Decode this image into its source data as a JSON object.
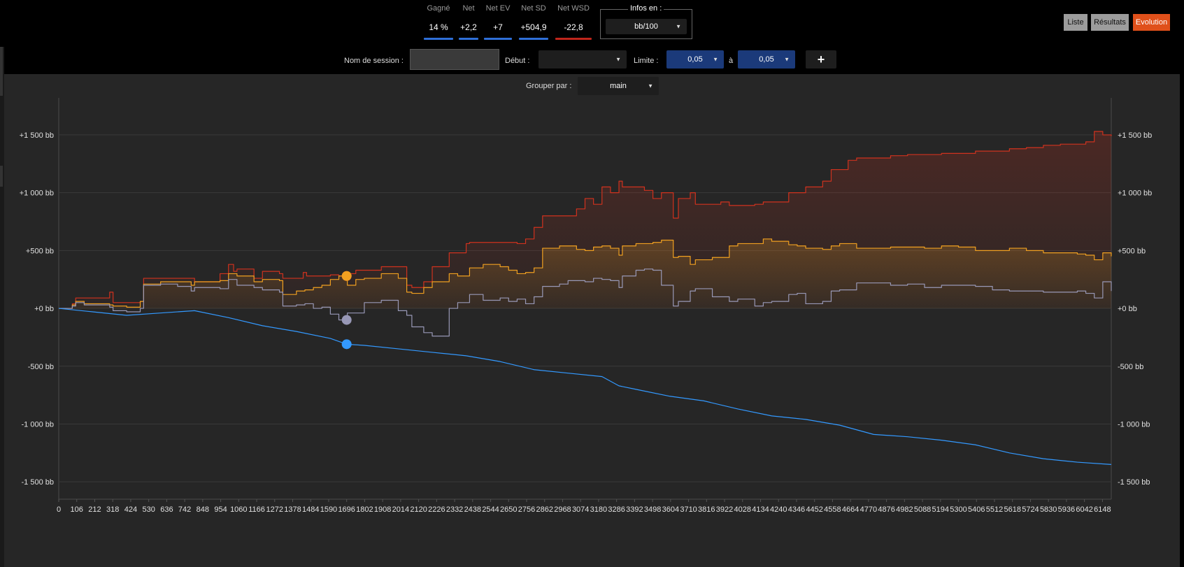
{
  "stats": [
    {
      "label": "Gagné",
      "value": "14 %",
      "color": "#2f6fd8"
    },
    {
      "label": "Net",
      "value": "+2,2",
      "color": "#2f6fd8"
    },
    {
      "label": "Net EV",
      "value": "+7",
      "color": "#2f6fd8"
    },
    {
      "label": "Net SD",
      "value": "+504,9",
      "color": "#2f6fd8"
    },
    {
      "label": "Net WSD",
      "value": "-22,8",
      "color": "#c0261b"
    }
  ],
  "infos": {
    "legend": "Infos en :",
    "value": "bb/100"
  },
  "views": {
    "list": "Liste",
    "results": "Résultats",
    "evolution": "Evolution"
  },
  "toolbar": {
    "session_label": "Nom de session :",
    "session_value": "",
    "start_label": "Début :",
    "start_value": "",
    "limit_label": "Limite :",
    "limit_from": "0,05",
    "to_label": "à",
    "limit_to": "0,05",
    "add_label": "+"
  },
  "group": {
    "label": "Grouper par :",
    "value": "main"
  },
  "chart_data": {
    "type": "line",
    "xlabel": "",
    "ylabel": "",
    "xlim": [
      0,
      6200
    ],
    "ylim": [
      -1650,
      1820
    ],
    "grid": true,
    "x_ticks": [
      "0",
      "106",
      "212",
      "318",
      "424",
      "530",
      "636",
      "742",
      "848",
      "954",
      "1060",
      "1166",
      "1272",
      "1378",
      "1484",
      "1590",
      "1696",
      "1802",
      "1908",
      "2014",
      "2120",
      "2226",
      "2332",
      "2438",
      "2544",
      "2650",
      "2756",
      "2862",
      "2968",
      "3074",
      "3180",
      "3286",
      "3392",
      "3498",
      "3604",
      "3710",
      "3816",
      "3922",
      "4028",
      "4134",
      "4240",
      "4346",
      "4452",
      "4558",
      "4664",
      "4770",
      "4876",
      "4982",
      "5088",
      "5194",
      "5300",
      "5406",
      "5512",
      "5618",
      "5724",
      "5830",
      "5936",
      "6042",
      "6148"
    ],
    "y_ticks": [
      {
        "value": 1500,
        "label": "+1 500 bb"
      },
      {
        "value": 1000,
        "label": "+1 000 bb"
      },
      {
        "value": 500,
        "label": "+500 bb"
      },
      {
        "value": 0,
        "label": "+0 bb"
      },
      {
        "value": -500,
        "label": "-500 bb"
      },
      {
        "value": -1000,
        "label": "-1 000 bb"
      },
      {
        "value": -1500,
        "label": "-1 500 bb"
      }
    ],
    "marker_x": 1696,
    "series": [
      {
        "color": "#d0321e",
        "fill": true,
        "steps": true,
        "x": [
          0,
          80,
          100,
          300,
          320,
          480,
          500,
          780,
          800,
          950,
          1000,
          1030,
          1050,
          1150,
          1200,
          1300,
          1320,
          1440,
          1460,
          1600,
          1650,
          1700,
          1750,
          1900,
          2050,
          2080,
          2150,
          2200,
          2300,
          2400,
          2420,
          2700,
          2750,
          2800,
          2850,
          3050,
          3100,
          3150,
          3200,
          3250,
          3300,
          3320,
          3450,
          3500,
          3550,
          3620,
          3650,
          3720,
          3750,
          3900,
          3950,
          4100,
          4150,
          4300,
          4400,
          4500,
          4550,
          4650,
          4700,
          4900,
          5000,
          5200,
          5400,
          5600,
          5700,
          5800,
          5900,
          6000,
          6050,
          6100,
          6150,
          6200
        ],
        "y": [
          0,
          40,
          90,
          140,
          50,
          60,
          260,
          260,
          230,
          300,
          380,
          320,
          340,
          260,
          320,
          300,
          260,
          310,
          280,
          290,
          280,
          300,
          330,
          360,
          200,
          180,
          230,
          360,
          480,
          560,
          570,
          560,
          600,
          700,
          800,
          860,
          950,
          900,
          1050,
          1000,
          1100,
          1050,
          1020,
          950,
          1000,
          780,
          950,
          1000,
          900,
          920,
          890,
          900,
          920,
          1000,
          1050,
          1100,
          1200,
          1280,
          1300,
          1320,
          1330,
          1340,
          1360,
          1380,
          1390,
          1410,
          1420,
          1420,
          1440,
          1530,
          1500,
          1490
        ]
      },
      {
        "color": "#f0a020",
        "fill": true,
        "steps": true,
        "x": [
          0,
          80,
          100,
          150,
          300,
          320,
          400,
          480,
          500,
          600,
          700,
          780,
          800,
          950,
          1000,
          1050,
          1150,
          1200,
          1300,
          1320,
          1400,
          1450,
          1500,
          1550,
          1600,
          1650,
          1700,
          1750,
          1800,
          1900,
          2000,
          2050,
          2080,
          2150,
          2200,
          2300,
          2350,
          2420,
          2500,
          2600,
          2650,
          2700,
          2750,
          2800,
          2850,
          2950,
          3000,
          3050,
          3100,
          3150,
          3200,
          3250,
          3300,
          3320,
          3400,
          3450,
          3500,
          3550,
          3620,
          3650,
          3720,
          3750,
          3850,
          3950,
          4000,
          4100,
          4150,
          4200,
          4300,
          4350,
          4400,
          4500,
          4550,
          4600,
          4700,
          4800,
          4900,
          5000,
          5100,
          5200,
          5300,
          5400,
          5500,
          5600,
          5700,
          5800,
          5900,
          6000,
          6050,
          6100,
          6150,
          6200
        ],
        "y": [
          0,
          30,
          60,
          40,
          30,
          20,
          10,
          60,
          210,
          230,
          230,
          200,
          230,
          240,
          300,
          280,
          230,
          250,
          240,
          120,
          150,
          160,
          180,
          200,
          250,
          280,
          200,
          250,
          260,
          300,
          260,
          140,
          130,
          180,
          230,
          300,
          280,
          350,
          380,
          360,
          330,
          300,
          310,
          350,
          520,
          540,
          540,
          510,
          500,
          530,
          540,
          520,
          460,
          540,
          560,
          560,
          570,
          590,
          440,
          450,
          380,
          420,
          440,
          540,
          560,
          560,
          600,
          580,
          550,
          540,
          520,
          510,
          540,
          560,
          520,
          520,
          530,
          530,
          520,
          540,
          530,
          500,
          500,
          520,
          500,
          480,
          480,
          470,
          460,
          420,
          480,
          450
        ]
      },
      {
        "color": "#9898b6",
        "fill": false,
        "steps": true,
        "x": [
          0,
          80,
          100,
          150,
          300,
          320,
          400,
          480,
          500,
          600,
          700,
          780,
          800,
          950,
          1000,
          1050,
          1150,
          1200,
          1300,
          1320,
          1400,
          1450,
          1500,
          1550,
          1600,
          1650,
          1700,
          1750,
          1800,
          1900,
          2000,
          2050,
          2080,
          2150,
          2200,
          2300,
          2350,
          2420,
          2500,
          2600,
          2650,
          2700,
          2750,
          2800,
          2850,
          2950,
          3000,
          3050,
          3100,
          3150,
          3200,
          3250,
          3300,
          3320,
          3400,
          3450,
          3500,
          3550,
          3620,
          3650,
          3720,
          3750,
          3850,
          3950,
          4000,
          4100,
          4150,
          4200,
          4300,
          4350,
          4400,
          4500,
          4550,
          4600,
          4700,
          4800,
          4900,
          5000,
          5100,
          5200,
          5300,
          5400,
          5500,
          5600,
          5700,
          5800,
          5900,
          6000,
          6050,
          6100,
          6150,
          6200
        ],
        "y": [
          0,
          20,
          50,
          30,
          10,
          -20,
          -30,
          0,
          200,
          210,
          190,
          150,
          180,
          170,
          250,
          200,
          180,
          160,
          140,
          20,
          30,
          40,
          0,
          10,
          -50,
          -100,
          -40,
          -40,
          50,
          70,
          -20,
          -60,
          -160,
          -210,
          -240,
          0,
          50,
          120,
          70,
          90,
          60,
          80,
          40,
          100,
          190,
          210,
          240,
          240,
          230,
          260,
          250,
          240,
          180,
          280,
          330,
          340,
          330,
          200,
          20,
          60,
          150,
          170,
          100,
          60,
          80,
          20,
          50,
          60,
          120,
          130,
          40,
          60,
          150,
          160,
          220,
          220,
          200,
          210,
          180,
          200,
          200,
          190,
          160,
          150,
          150,
          140,
          140,
          150,
          130,
          90,
          230,
          150
        ]
      },
      {
        "color": "#3399ff",
        "fill": false,
        "steps": false,
        "x": [
          0,
          200,
          400,
          600,
          800,
          1000,
          1200,
          1400,
          1600,
          1696,
          1800,
          2000,
          2200,
          2400,
          2600,
          2800,
          3000,
          3200,
          3300,
          3400,
          3600,
          3800,
          4000,
          4200,
          4400,
          4600,
          4800,
          5000,
          5200,
          5400,
          5600,
          5800,
          6000,
          6200
        ],
        "y": [
          0,
          -30,
          -60,
          -40,
          -20,
          -80,
          -150,
          -200,
          -260,
          -310,
          -320,
          -350,
          -380,
          -410,
          -460,
          -530,
          -560,
          -590,
          -670,
          -700,
          -760,
          -800,
          -870,
          -930,
          -960,
          -1010,
          -1090,
          -1110,
          -1140,
          -1180,
          -1250,
          -1300,
          -1330,
          -1350
        ]
      }
    ]
  }
}
